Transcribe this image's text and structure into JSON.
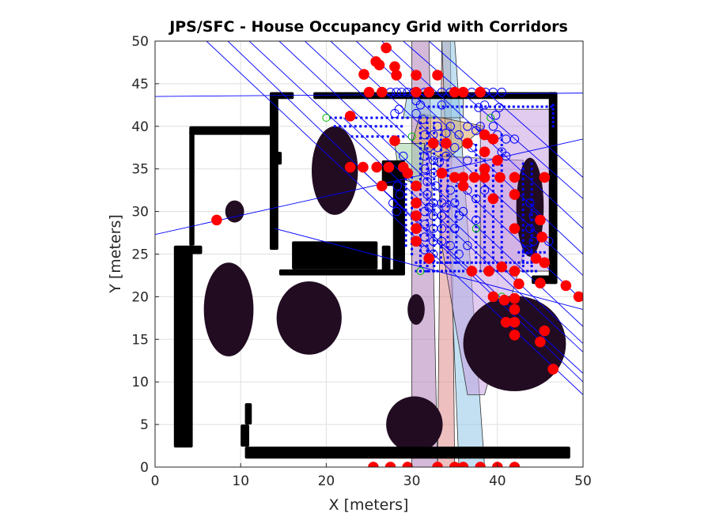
{
  "chart_data": {
    "type": "scatter",
    "title": "JPS/SFC - House Occupancy Grid with Corridors",
    "xlabel": "X [meters]",
    "ylabel": "Y [meters]",
    "xlim": [
      0,
      50
    ],
    "ylim": [
      0,
      50
    ],
    "xticks": [
      "0",
      "10",
      "20",
      "30",
      "40",
      "50"
    ],
    "yticks": [
      "0",
      "5",
      "10",
      "15",
      "20",
      "25",
      "30",
      "35",
      "40",
      "45",
      "50"
    ],
    "grid": true,
    "colors": {
      "obstacle": "#000000",
      "obstacle_dark": "#220c22",
      "waypoint": "#ff0000",
      "visited": "#0000ff",
      "jump_point": "#00c000",
      "ray": "#0000ff",
      "corridor_fills": [
        "#b07fb8",
        "#e08a8a",
        "#8fc6e6",
        "#d9a866",
        "#9fd4a4",
        "#c9a0e0"
      ]
    },
    "walls": [
      {
        "x": [
          2.2,
          4.4
        ],
        "y": [
          2.3,
          26.0
        ]
      },
      {
        "x": [
          3.8,
          5.5
        ],
        "y": [
          25.0,
          26.0
        ]
      },
      {
        "x": [
          4.0,
          4.6
        ],
        "y": [
          26.0,
          39.5
        ]
      },
      {
        "x": [
          4.0,
          14.0
        ],
        "y": [
          39.0,
          40.0
        ]
      },
      {
        "x": [
          13.4,
          14.4
        ],
        "y": [
          25.5,
          44.0
        ]
      },
      {
        "x": [
          14.0,
          16.2
        ],
        "y": [
          43.2,
          44.0
        ]
      },
      {
        "x": [
          14.0,
          14.8
        ],
        "y": [
          35.5,
          37.0
        ]
      },
      {
        "x": [
          18.5,
          47.0
        ],
        "y": [
          43.2,
          44.0
        ]
      },
      {
        "x": [
          46.0,
          47.0
        ],
        "y": [
          21.5,
          44.0
        ]
      },
      {
        "x": [
          44.0,
          47.0
        ],
        "y": [
          21.5,
          22.5
        ]
      },
      {
        "x": [
          26.5,
          28.0
        ],
        "y": [
          33.0,
          36.0
        ]
      },
      {
        "x": [
          27.8,
          29.2
        ],
        "y": [
          22.5,
          36.0
        ]
      },
      {
        "x": [
          26.5,
          27.5
        ],
        "y": [
          22.5,
          26.0
        ]
      },
      {
        "x": [
          14.5,
          29.2
        ],
        "y": [
          22.5,
          23.2
        ]
      },
      {
        "x": [
          16.0,
          26.0
        ],
        "y": [
          23.2,
          26.5
        ]
      },
      {
        "x": [
          10.5,
          11.3
        ],
        "y": [
          5.0,
          7.5
        ]
      },
      {
        "x": [
          10.0,
          11.0
        ],
        "y": [
          2.4,
          5.0
        ]
      },
      {
        "x": [
          10.5,
          48.5
        ],
        "y": [
          1.0,
          2.4
        ]
      }
    ],
    "blobs": [
      {
        "cx": 21.0,
        "cy": 34.8,
        "rx": 2.7,
        "ry": 5.2
      },
      {
        "cx": 8.6,
        "cy": 18.5,
        "rx": 2.9,
        "ry": 5.5
      },
      {
        "cx": 18.0,
        "cy": 17.5,
        "rx": 3.8,
        "ry": 4.3
      },
      {
        "cx": 30.3,
        "cy": 5.0,
        "rx": 3.3,
        "ry": 3.3
      },
      {
        "cx": 42.0,
        "cy": 14.5,
        "rx": 6.0,
        "ry": 5.6
      },
      {
        "cx": 30.5,
        "cy": 18.5,
        "rx": 1.0,
        "ry": 1.8
      },
      {
        "cx": 9.3,
        "cy": 30.0,
        "rx": 1.1,
        "ry": 1.3
      },
      {
        "cx": 43.8,
        "cy": 30.5,
        "rx": 1.6,
        "ry": 5.8
      }
    ],
    "corridors": [
      {
        "poly": [
          [
            30.0,
            0.0
          ],
          [
            33.0,
            0.0
          ],
          [
            32.0,
            50.0
          ],
          [
            30.0,
            50.0
          ]
        ],
        "color": "#b07fb8"
      },
      {
        "poly": [
          [
            33.0,
            0.0
          ],
          [
            35.0,
            0.0
          ],
          [
            34.5,
            50.0
          ],
          [
            33.5,
            50.0
          ]
        ],
        "color": "#e08a8a"
      },
      {
        "poly": [
          [
            35.5,
            0.0
          ],
          [
            38.5,
            0.0
          ],
          [
            35.0,
            50.0
          ],
          [
            33.5,
            50.0
          ]
        ],
        "color": "#8fc6e6"
      },
      {
        "poly": [
          [
            31.0,
            41.5
          ],
          [
            38.5,
            40.0
          ],
          [
            34.0,
            36.0
          ],
          [
            30.0,
            38.0
          ]
        ],
        "color": "#d9a866"
      },
      {
        "poly": [
          [
            28.0,
            38.0
          ],
          [
            31.5,
            38.0
          ],
          [
            31.0,
            33.0
          ],
          [
            28.5,
            34.0
          ]
        ],
        "color": "#9fd4a4"
      },
      {
        "poly": [
          [
            33.0,
            36.5
          ],
          [
            43.0,
            36.0
          ],
          [
            43.0,
            25.0
          ],
          [
            38.5,
            8.5
          ],
          [
            36.5,
            8.5
          ],
          [
            33.5,
            26.0
          ]
        ],
        "color": "#c9a0e0"
      },
      {
        "poly": [
          [
            29.5,
            44.0
          ],
          [
            36.0,
            44.0
          ],
          [
            36.0,
            41.0
          ],
          [
            29.0,
            41.0
          ]
        ],
        "color": "#8fc6e6"
      },
      {
        "poly": [
          [
            38.0,
            42.0
          ],
          [
            46.5,
            42.0
          ],
          [
            46.5,
            23.0
          ],
          [
            38.0,
            23.0
          ]
        ],
        "color": "#c9a0e0"
      }
    ],
    "rays": [
      {
        "x": [
          0.0,
          50.0
        ],
        "y": [
          43.5,
          43.9
        ]
      },
      {
        "x": [
          0.0,
          50.0
        ],
        "y": [
          27.3,
          38.5
        ]
      },
      {
        "x": [
          14.0,
          50.0
        ],
        "y": [
          28.0,
          18.5
        ]
      },
      {
        "x": [
          6.0,
          50.0
        ],
        "y": [
          50.0,
          8.5
        ]
      },
      {
        "x": [
          8.5,
          50.0
        ],
        "y": [
          50.0,
          10.0
        ]
      },
      {
        "x": [
          11.0,
          50.0
        ],
        "y": [
          50.0,
          13.5
        ]
      },
      {
        "x": [
          14.5,
          50.0
        ],
        "y": [
          50.0,
          16.5
        ]
      },
      {
        "x": [
          17.5,
          50.0
        ],
        "y": [
          50.0,
          19.5
        ]
      },
      {
        "x": [
          20.5,
          50.0
        ],
        "y": [
          50.0,
          22.5
        ]
      },
      {
        "x": [
          23.5,
          50.0
        ],
        "y": [
          50.0,
          25.0
        ]
      },
      {
        "x": [
          26.5,
          50.0
        ],
        "y": [
          50.0,
          28.0
        ]
      },
      {
        "x": [
          29.0,
          50.0
        ],
        "y": [
          50.0,
          31.5
        ]
      },
      {
        "x": [
          32.0,
          50.0
        ],
        "y": [
          50.0,
          34.0
        ]
      },
      {
        "x": [
          22.0,
          50.0
        ],
        "y": [
          41.0,
          14.5
        ]
      },
      {
        "x": [
          24.0,
          50.0
        ],
        "y": [
          35.0,
          11.0
        ]
      }
    ],
    "waypoints": [
      [
        27.0,
        49.2
      ],
      [
        26.2,
        47.2
      ],
      [
        25.8,
        47.6
      ],
      [
        24.4,
        46.1
      ],
      [
        28.0,
        47.0
      ],
      [
        28.2,
        46.0
      ],
      [
        30.5,
        46.0
      ],
      [
        33.0,
        46.0
      ],
      [
        25.0,
        44.0
      ],
      [
        26.5,
        44.0
      ],
      [
        30.5,
        44.0
      ],
      [
        32.0,
        44.0
      ],
      [
        35.0,
        44.0
      ],
      [
        36.0,
        44.0
      ],
      [
        38.0,
        44.0
      ],
      [
        22.8,
        41.2
      ],
      [
        28.0,
        38.3
      ],
      [
        32.5,
        38.0
      ],
      [
        34.0,
        38.0
      ],
      [
        36.5,
        38.0
      ],
      [
        38.5,
        39.0
      ],
      [
        38.5,
        37.0
      ],
      [
        39.5,
        38.5
      ],
      [
        40.0,
        36.0
      ],
      [
        38.5,
        35.0
      ],
      [
        22.8,
        35.2
      ],
      [
        24.3,
        35.2
      ],
      [
        25.9,
        35.2
      ],
      [
        27.3,
        35.2
      ],
      [
        29.0,
        35.2
      ],
      [
        29.5,
        34.5
      ],
      [
        33.5,
        34.5
      ],
      [
        35.0,
        34.0
      ],
      [
        36.0,
        34.0
      ],
      [
        37.3,
        34.0
      ],
      [
        38.5,
        34.0
      ],
      [
        40.3,
        34.0
      ],
      [
        42.0,
        34.0
      ],
      [
        42.0,
        32.0
      ],
      [
        45.5,
        34.0
      ],
      [
        26.5,
        33.0
      ],
      [
        30.5,
        33.0
      ],
      [
        36.0,
        33.0
      ],
      [
        39.5,
        31.5
      ],
      [
        30.5,
        31.0
      ],
      [
        30.5,
        29.5
      ],
      [
        30.5,
        28.0
      ],
      [
        30.5,
        26.5
      ],
      [
        42.0,
        28.0
      ],
      [
        45.0,
        29.0
      ],
      [
        45.2,
        27.0
      ],
      [
        44.5,
        24.5
      ],
      [
        45.5,
        24.0
      ],
      [
        37.0,
        23.0
      ],
      [
        39.0,
        23.0
      ],
      [
        40.5,
        23.5
      ],
      [
        42.0,
        23.0
      ],
      [
        42.5,
        21.5
      ],
      [
        45.0,
        21.6
      ],
      [
        48.0,
        21.3
      ],
      [
        49.5,
        20.0
      ],
      [
        39.5,
        20.0
      ],
      [
        40.8,
        19.6
      ],
      [
        42.0,
        19.8
      ],
      [
        42.0,
        18.5
      ],
      [
        42.0,
        17.0
      ],
      [
        41.0,
        17.0
      ],
      [
        42.0,
        15.5
      ],
      [
        45.5,
        16.0
      ],
      [
        45.0,
        14.7
      ],
      [
        46.5,
        11.5
      ],
      [
        7.2,
        29.0
      ],
      [
        32.0,
        24.5
      ],
      [
        25.5,
        0.0
      ],
      [
        27.5,
        0.0
      ],
      [
        29.5,
        0.0
      ],
      [
        33.0,
        0.0
      ],
      [
        35.0,
        0.0
      ],
      [
        36.0,
        0.0
      ],
      [
        38.0,
        0.0
      ],
      [
        40.0,
        0.0
      ],
      [
        42.0,
        0.0
      ]
    ],
    "visited": [
      [
        26.6,
        44.0
      ],
      [
        27.5,
        44.0
      ],
      [
        28.2,
        44.0
      ],
      [
        28.8,
        44.0
      ],
      [
        29.5,
        44.0
      ],
      [
        30.2,
        44.0
      ],
      [
        31.5,
        44.0
      ],
      [
        33.5,
        44.0
      ],
      [
        34.5,
        44.0
      ],
      [
        37.0,
        44.0
      ],
      [
        38.6,
        44.0
      ],
      [
        39.5,
        44.0
      ],
      [
        40.5,
        44.0
      ],
      [
        30.5,
        43.0
      ],
      [
        31.0,
        42.5
      ],
      [
        33.5,
        42.5
      ],
      [
        38.5,
        42.5
      ],
      [
        30.5,
        41.5
      ],
      [
        31.3,
        40.8
      ],
      [
        33.0,
        40.0
      ],
      [
        34.5,
        40.0
      ],
      [
        36.5,
        40.0
      ],
      [
        38.0,
        40.0
      ],
      [
        39.5,
        40.0
      ],
      [
        31.5,
        39.0
      ],
      [
        32.5,
        39.0
      ],
      [
        34.0,
        39.2
      ],
      [
        35.5,
        39.0
      ],
      [
        37.5,
        39.5
      ],
      [
        40.0,
        39.0
      ],
      [
        41.0,
        38.5
      ],
      [
        32.0,
        37.5
      ],
      [
        33.0,
        37.5
      ],
      [
        35.0,
        37.5
      ],
      [
        37.0,
        37.5
      ],
      [
        40.5,
        37.0
      ],
      [
        31.5,
        36.5
      ],
      [
        32.5,
        36.0
      ],
      [
        33.2,
        35.8
      ],
      [
        34.0,
        36.5
      ],
      [
        36.5,
        36.0
      ],
      [
        31.5,
        35.0
      ],
      [
        32.5,
        34.5
      ],
      [
        31.8,
        33.5
      ],
      [
        32.8,
        33.0
      ],
      [
        34.5,
        32.5
      ],
      [
        36.5,
        32.5
      ],
      [
        38.5,
        32.5
      ],
      [
        31.8,
        32.0
      ],
      [
        32.5,
        31.0
      ],
      [
        33.5,
        31.0
      ],
      [
        35.0,
        31.0
      ],
      [
        37.5,
        31.5
      ],
      [
        31.5,
        30.0
      ],
      [
        32.5,
        29.5
      ],
      [
        33.5,
        29.5
      ],
      [
        35.5,
        29.5
      ],
      [
        37.5,
        29.0
      ],
      [
        31.5,
        28.5
      ],
      [
        32.5,
        28.0
      ],
      [
        33.5,
        28.0
      ],
      [
        35.0,
        28.0
      ],
      [
        31.5,
        27.0
      ],
      [
        32.5,
        26.5
      ],
      [
        33.5,
        26.5
      ],
      [
        34.5,
        26.0
      ],
      [
        36.5,
        26.0
      ],
      [
        31.5,
        25.5
      ],
      [
        32.5,
        25.0
      ],
      [
        35.5,
        25.0
      ],
      [
        28.0,
        41.5
      ],
      [
        28.5,
        42.0
      ],
      [
        29.0,
        36.5
      ],
      [
        28.3,
        33.0
      ],
      [
        28.6,
        32.0
      ],
      [
        27.8,
        31.0
      ],
      [
        28.2,
        30.0
      ],
      [
        43.8,
        31.0
      ],
      [
        44.2,
        29.5
      ],
      [
        43.8,
        28.0
      ],
      [
        44.2,
        26.5
      ],
      [
        43.5,
        25.5
      ],
      [
        46.0,
        26.5
      ],
      [
        41.0,
        36.5
      ],
      [
        42.0,
        38.5
      ],
      [
        39.8,
        41.3
      ],
      [
        37.8,
        42.2
      ],
      [
        40.2,
        42.2
      ],
      [
        32.0,
        30.5
      ],
      [
        34.0,
        30.5
      ],
      [
        36.0,
        30.0
      ]
    ],
    "jump_points": [
      [
        20.0,
        41.0
      ],
      [
        30.0,
        38.8
      ],
      [
        39.2,
        41.0
      ],
      [
        37.5,
        28.0
      ],
      [
        31.0,
        23.0
      ],
      [
        40.5,
        20.0
      ]
    ],
    "dot_rows": [
      {
        "y": 42.3,
        "x": [
          32.0,
          46.5
        ],
        "step": 0.55
      },
      {
        "y": 41.0,
        "x": [
          20.5,
          30.0
        ],
        "step": 0.6
      },
      {
        "y": 40.0,
        "x": [
          21.0,
          29.0
        ],
        "step": 0.6
      },
      {
        "y": 38.8,
        "x": [
          23.0,
          29.0
        ],
        "step": 0.6
      },
      {
        "y": 23.0,
        "x": [
          30.5,
          44.5
        ],
        "step": 0.5
      },
      {
        "y": 24.0,
        "x": [
          30.5,
          44.0
        ],
        "step": 0.5
      },
      {
        "y": 25.2,
        "x": [
          42.5,
          45.5
        ],
        "step": 0.5
      }
    ],
    "dot_cols": [
      {
        "x": 31.0,
        "y": [
          23.0,
          41.0
        ],
        "step": 0.6
      },
      {
        "x": 31.8,
        "y": [
          23.0,
          41.0
        ],
        "step": 0.6
      },
      {
        "x": 32.6,
        "y": [
          23.0,
          41.0
        ],
        "step": 0.6
      },
      {
        "x": 33.4,
        "y": [
          24.0,
          40.0
        ],
        "step": 0.6
      },
      {
        "x": 34.2,
        "y": [
          24.0,
          37.0
        ],
        "step": 0.6
      },
      {
        "x": 35.2,
        "y": [
          24.0,
          33.0
        ],
        "step": 0.6
      },
      {
        "x": 37.5,
        "y": [
          24.0,
          38.0
        ],
        "step": 0.6
      },
      {
        "x": 38.5,
        "y": [
          24.0,
          37.0
        ],
        "step": 0.6
      },
      {
        "x": 39.5,
        "y": [
          24.0,
          36.0
        ],
        "step": 0.6
      },
      {
        "x": 40.5,
        "y": [
          24.0,
          39.0
        ],
        "step": 0.6
      },
      {
        "x": 43.0,
        "y": [
          23.0,
          36.0
        ],
        "step": 0.6
      },
      {
        "x": 44.0,
        "y": [
          23.0,
          36.0
        ],
        "step": 0.6
      },
      {
        "x": 29.3,
        "y": [
          26.0,
          34.0
        ],
        "step": 0.6
      },
      {
        "x": 30.0,
        "y": [
          25.0,
          35.0
        ],
        "step": 0.6
      },
      {
        "x": 46.5,
        "y": [
          40.0,
          42.5
        ],
        "step": 0.5
      }
    ]
  }
}
